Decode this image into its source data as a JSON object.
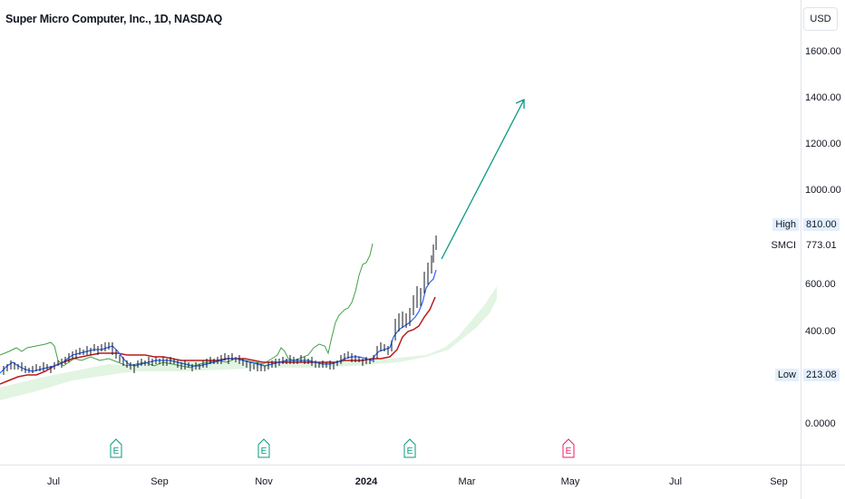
{
  "header": {
    "title": "Super Micro Computer, Inc., 1D, NASDAQ"
  },
  "price_axis": {
    "currency": "USD",
    "ticks": [
      "1600.00",
      "1400.00",
      "1200.00",
      "1000.00",
      "600.00",
      "400.00",
      "0.0000"
    ],
    "high_label": "High",
    "high_value": "810.00",
    "symbol_label": "SMCI",
    "symbol_value": "773.01",
    "low_label": "Low",
    "low_value": "213.08"
  },
  "time_axis": {
    "ticks": [
      "Jul",
      "Sep",
      "Nov",
      "2024",
      "Mar",
      "May",
      "Jul",
      "Sep"
    ]
  },
  "earnings_markers": [
    "E",
    "E",
    "E",
    "E"
  ],
  "colors": {
    "green_line": "#43a047",
    "blue_line": "#2962ff",
    "red_line": "#b71c1c",
    "cloud": "#d8f0d8",
    "arrow": "#089981",
    "earnings_past": "#089981",
    "earnings_future": "#e91e63"
  }
}
